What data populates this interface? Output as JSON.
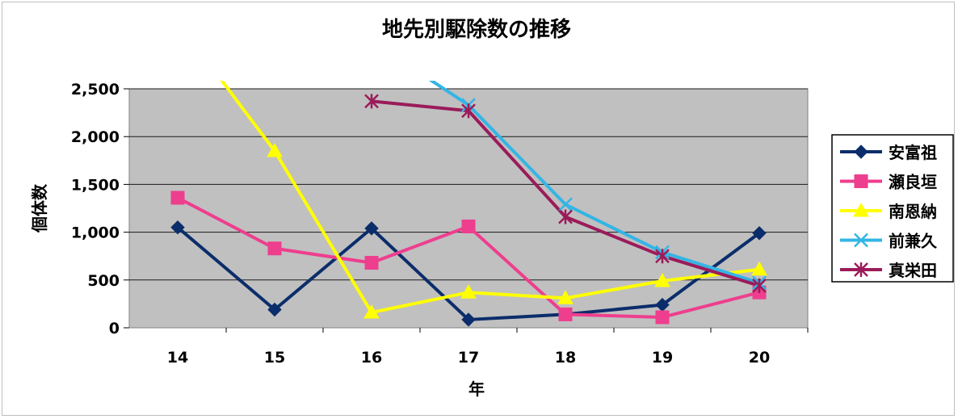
{
  "chart_data": {
    "type": "line",
    "title": "地先別駆除数の推移",
    "xlabel": "年",
    "ylabel": "個体数",
    "categories": [
      "14",
      "15",
      "16",
      "17",
      "18",
      "19",
      "20"
    ],
    "yticks": [
      "0",
      "500",
      "1,000",
      "1,500",
      "2,000",
      "2,500"
    ],
    "ylim": [
      0,
      2500
    ],
    "grid": true,
    "legend_position": "right",
    "series": [
      {
        "name": "安富祖",
        "color": "#0b2d6b",
        "marker": "diamond",
        "values": [
          1050,
          190,
          1040,
          85,
          140,
          240,
          990
        ]
      },
      {
        "name": "瀬良垣",
        "color": "#ee3e8e",
        "marker": "square",
        "values": [
          1360,
          830,
          680,
          1060,
          140,
          110,
          370
        ]
      },
      {
        "name": "南恩納",
        "color": "#ffff00",
        "marker": "triangle",
        "values": [
          3200,
          1850,
          160,
          370,
          310,
          490,
          610
        ]
      },
      {
        "name": "前兼久",
        "color": "#33b5e5",
        "marker": "x",
        "values": [
          null,
          null,
          3000,
          2330,
          1290,
          790,
          470
        ]
      },
      {
        "name": "真栄田",
        "color": "#9b1b5a",
        "marker": "star",
        "values": [
          null,
          null,
          2370,
          2270,
          1160,
          750,
          440
        ]
      }
    ]
  }
}
